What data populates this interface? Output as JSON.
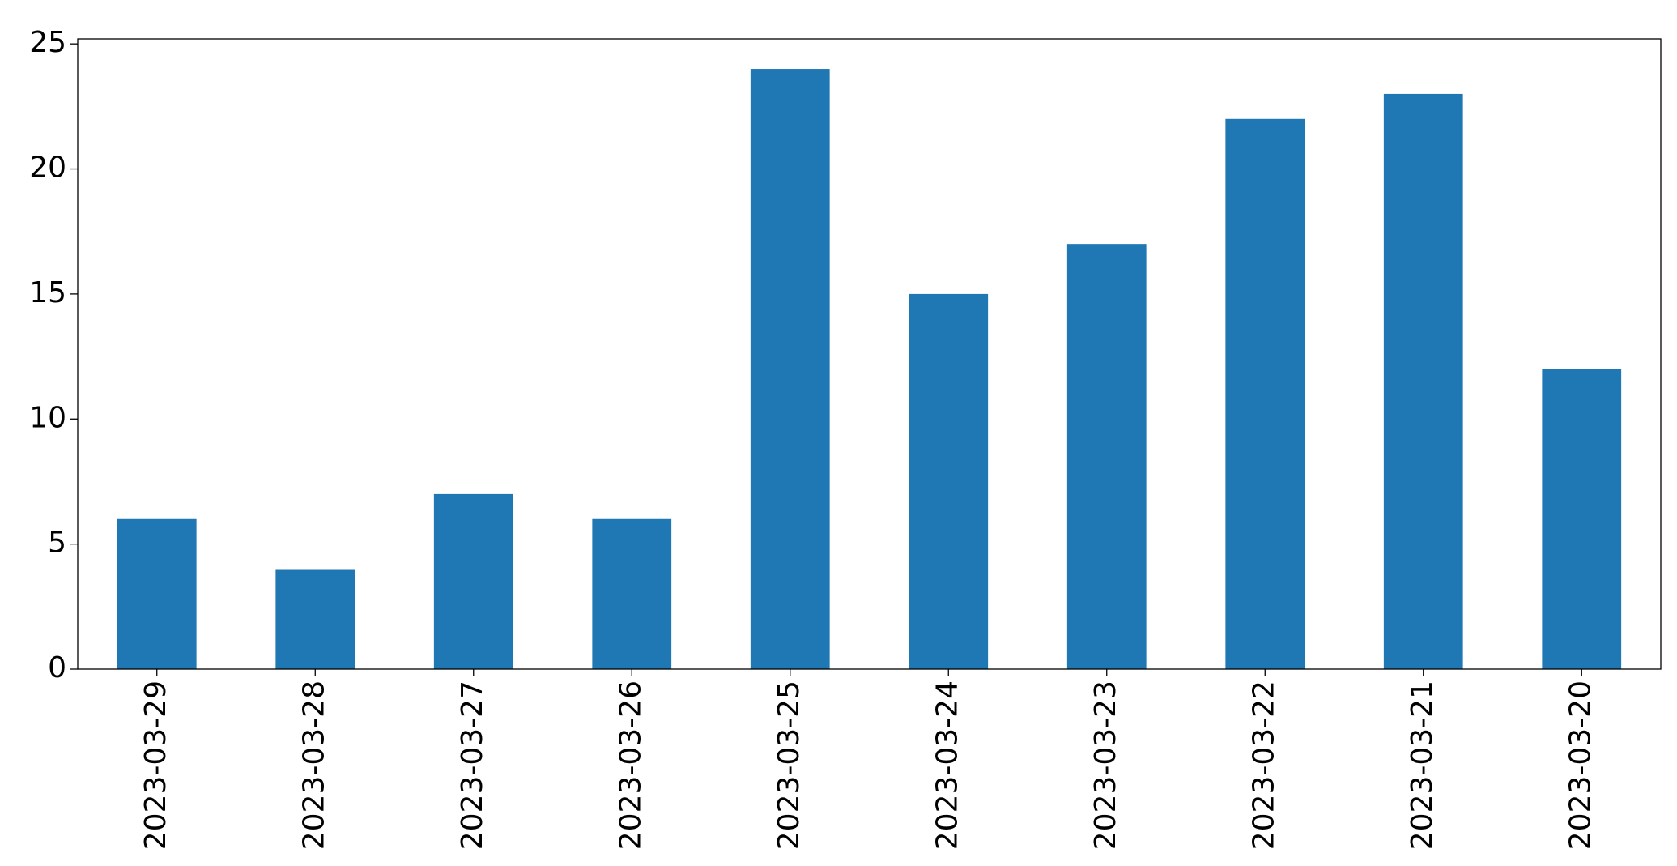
{
  "chart_data": {
    "type": "bar",
    "categories": [
      "2023-03-29",
      "2023-03-28",
      "2023-03-27",
      "2023-03-26",
      "2023-03-25",
      "2023-03-24",
      "2023-03-23",
      "2023-03-22",
      "2023-03-21",
      "2023-03-20"
    ],
    "values": [
      6,
      4,
      7,
      6,
      24,
      15,
      17,
      22,
      23,
      12
    ],
    "color": "#1f77b4",
    "ylim": [
      0,
      25.2
    ],
    "yticks": [
      0,
      5,
      10,
      15,
      20,
      25
    ],
    "grid": false
  }
}
